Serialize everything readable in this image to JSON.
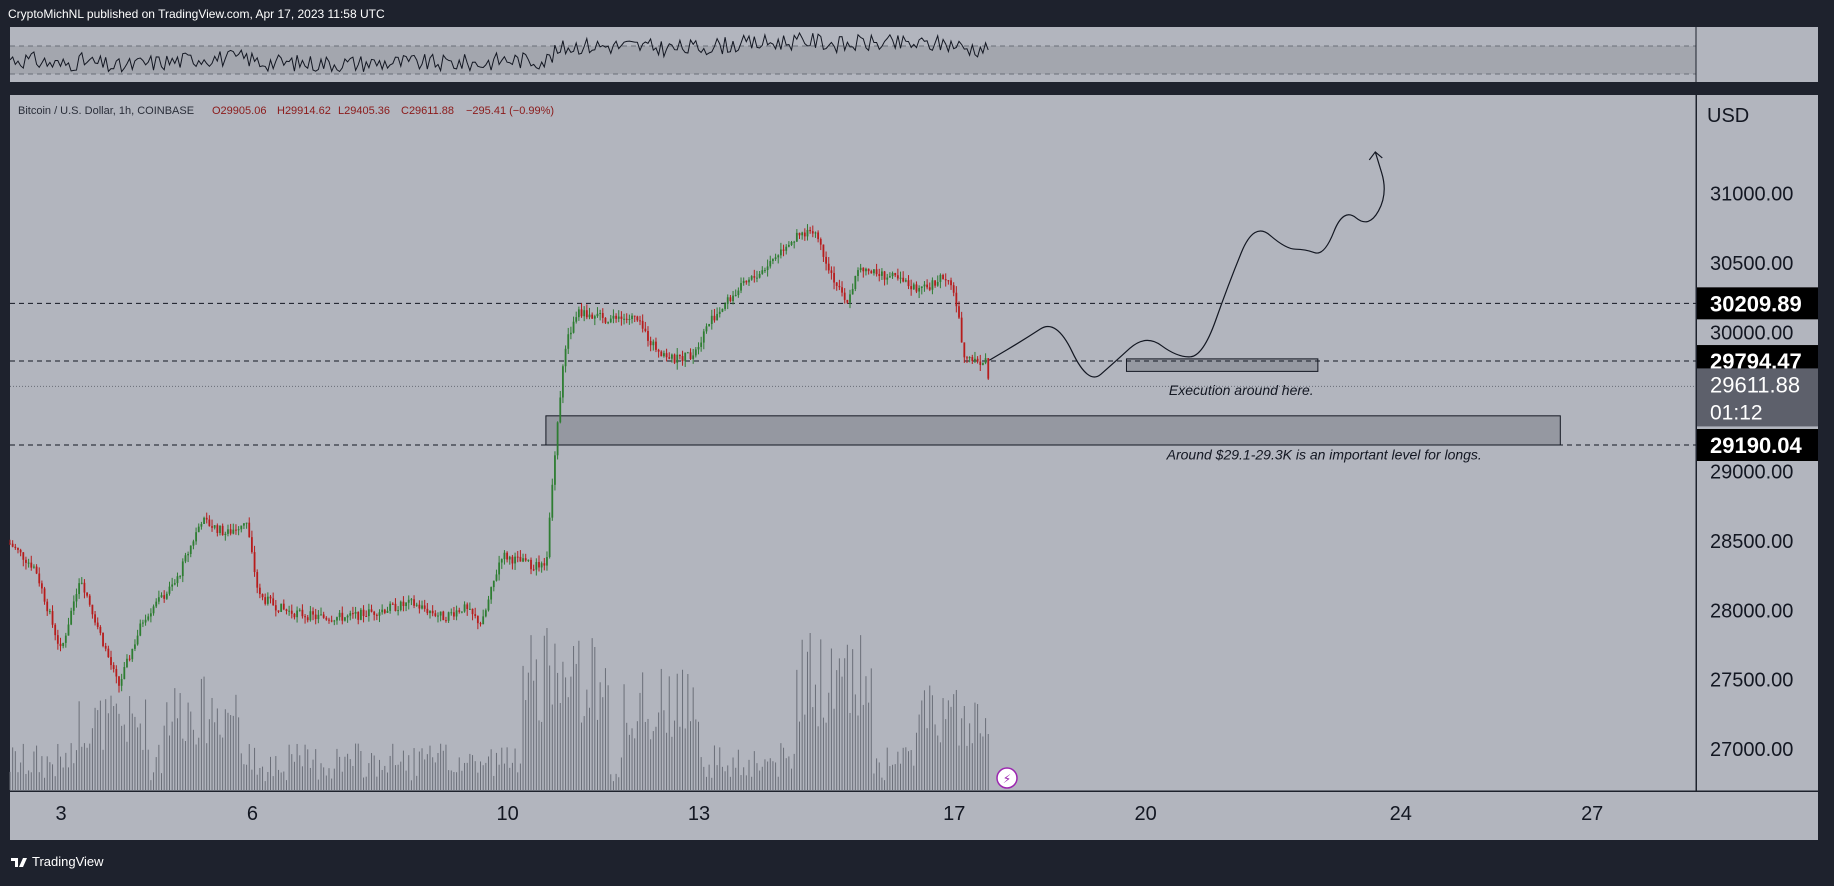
{
  "header": {
    "published": "CryptoMichNL published on TradingView.com, Apr 17, 2023 11:58 UTC"
  },
  "footer": {
    "brand": "TradingView",
    "logo_icon": "tradingview-logo-icon"
  },
  "colors": {
    "background_outer": "#1e222d",
    "chart_bg": "#b2b5be",
    "up_candle": "#2e7d32",
    "down_candle": "#b71c1c",
    "volume": "#6a6e78",
    "price_label_bg": "#000000",
    "current_label_bg": "#5d606b",
    "zone_fill": "#9598a1",
    "line": "#131722"
  },
  "legend": {
    "symbol": "Bitcoin / U.S. Dollar, 1h, COINBASE",
    "open": "O29905.06",
    "high": "H29914.62",
    "low": "L29405.36",
    "close": "C29611.88",
    "change": "−295.41 (−0.99%)"
  },
  "chart_data": {
    "type": "candlestick",
    "instrument": "Bitcoin / U.S. Dollar",
    "interval": "1h",
    "exchange": "COINBASE",
    "currency": "USD",
    "ylim": [
      26850,
      31350
    ],
    "y_ticks": [
      "31000.00",
      "30500.00",
      "30000.00",
      "29000.00",
      "28500.00",
      "28000.00",
      "27500.00",
      "27000.00"
    ],
    "y_tick_values": [
      31000,
      30500,
      30000,
      29000,
      28500,
      28000,
      27500,
      27000
    ],
    "x_ticks": [
      "3",
      "6",
      "10",
      "13",
      "17",
      "20",
      "24",
      "27"
    ],
    "x_tick_days": [
      3,
      6,
      10,
      13,
      17,
      20,
      24,
      27
    ],
    "xlim_days": [
      2.2,
      28.0
    ],
    "price_path": [
      [
        2.2,
        28480
      ],
      [
        2.6,
        28300
      ],
      [
        3.0,
        27700
      ],
      [
        3.3,
        28250
      ],
      [
        3.6,
        27850
      ],
      [
        3.9,
        27450
      ],
      [
        4.3,
        27950
      ],
      [
        4.8,
        28200
      ],
      [
        5.2,
        28650
      ],
      [
        5.6,
        28550
      ],
      [
        5.9,
        28650
      ],
      [
        6.1,
        28100
      ],
      [
        6.5,
        28000
      ],
      [
        7.0,
        27950
      ],
      [
        7.5,
        27950
      ],
      [
        8.0,
        28000
      ],
      [
        8.5,
        28050
      ],
      [
        9.0,
        27950
      ],
      [
        9.3,
        28020
      ],
      [
        9.6,
        27900
      ],
      [
        9.9,
        28400
      ],
      [
        10.2,
        28350
      ],
      [
        10.6,
        28300
      ],
      [
        10.75,
        29200
      ],
      [
        10.9,
        29900
      ],
      [
        11.1,
        30150
      ],
      [
        11.5,
        30100
      ],
      [
        12.0,
        30100
      ],
      [
        12.3,
        29900
      ],
      [
        12.6,
        29800
      ],
      [
        12.9,
        29850
      ],
      [
        13.2,
        30100
      ],
      [
        13.6,
        30300
      ],
      [
        14.0,
        30450
      ],
      [
        14.4,
        30650
      ],
      [
        14.8,
        30750
      ],
      [
        15.1,
        30400
      ],
      [
        15.3,
        30200
      ],
      [
        15.5,
        30450
      ],
      [
        16.0,
        30400
      ],
      [
        16.5,
        30300
      ],
      [
        16.8,
        30400
      ],
      [
        17.0,
        30300
      ],
      [
        17.15,
        29850
      ],
      [
        17.3,
        29800
      ],
      [
        17.5,
        29790
      ],
      [
        17.55,
        29612
      ]
    ],
    "volume_spikes": [
      {
        "day": 10.8,
        "rel": 0.95
      },
      {
        "day": 11.0,
        "rel": 0.75
      },
      {
        "day": 12.4,
        "rel": 0.7
      },
      {
        "day": 15.1,
        "rel": 0.9
      },
      {
        "day": 17.0,
        "rel": 0.6
      },
      {
        "day": 5.2,
        "rel": 0.65
      },
      {
        "day": 3.8,
        "rel": 0.55
      }
    ],
    "current_price": {
      "value": 29611.88,
      "label": "29611.88",
      "countdown": "01:12"
    },
    "horizontal_levels": [
      {
        "value": 30209.89,
        "label": "30209.89"
      },
      {
        "value": 29794.47,
        "label": "29794.47"
      },
      {
        "value": 29190.04,
        "label": "29190.04"
      }
    ],
    "zones": [
      {
        "from_day": 19.7,
        "to_day": 22.7,
        "low": 29720,
        "high": 29810
      },
      {
        "from_day": 10.6,
        "to_day": 26.5,
        "low": 29190,
        "high": 29400
      }
    ],
    "annotations": [
      {
        "text": "Execution around here.",
        "day": 21.5,
        "price": 29550
      },
      {
        "text": "Around $29.1-29.3K is an important level for longs.",
        "day": 22.8,
        "price": 29085
      }
    ],
    "projection_path": [
      [
        17.55,
        29800
      ],
      [
        18.1,
        29950
      ],
      [
        18.6,
        30100
      ],
      [
        19.1,
        29620
      ],
      [
        19.5,
        29780
      ],
      [
        20.0,
        29990
      ],
      [
        20.5,
        29820
      ],
      [
        20.9,
        29830
      ],
      [
        21.3,
        30350
      ],
      [
        21.7,
        30800
      ],
      [
        22.2,
        30600
      ],
      [
        22.5,
        30600
      ],
      [
        22.8,
        30550
      ],
      [
        23.1,
        30900
      ],
      [
        23.5,
        30750
      ],
      [
        23.8,
        31000
      ],
      [
        23.6,
        31300
      ]
    ],
    "indicator": {
      "type": "oscillator",
      "band_upper": 0.72,
      "band_lower": 0.28
    }
  }
}
